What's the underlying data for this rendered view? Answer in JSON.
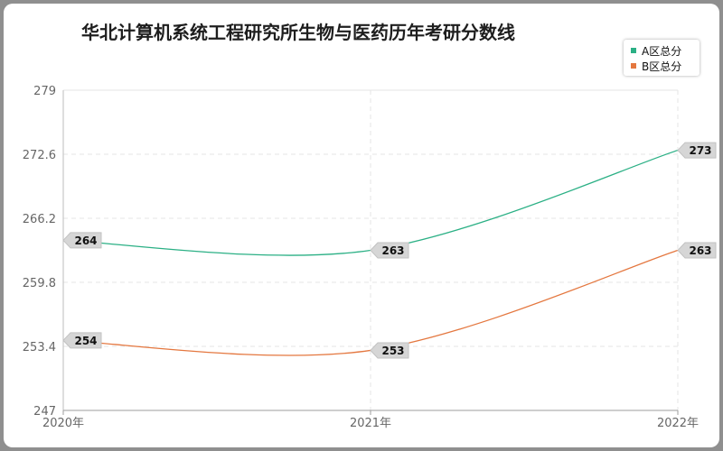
{
  "chart_data": {
    "type": "line",
    "title": "华北计算机系统工程研究所生物与医药历年考研分数线",
    "categories": [
      "2020年",
      "2021年",
      "2022年"
    ],
    "series": [
      {
        "name": "A区总分",
        "values": [
          264,
          263,
          273
        ],
        "color": "#2bb085"
      },
      {
        "name": "B区总分",
        "values": [
          254,
          253,
          263
        ],
        "color": "#e4773f"
      }
    ],
    "y_ticks": [
      "279",
      "272.6",
      "266.2",
      "259.8",
      "253.4",
      "247"
    ],
    "ylim": [
      247,
      279
    ],
    "grid": true,
    "legend_position": "top-right"
  }
}
